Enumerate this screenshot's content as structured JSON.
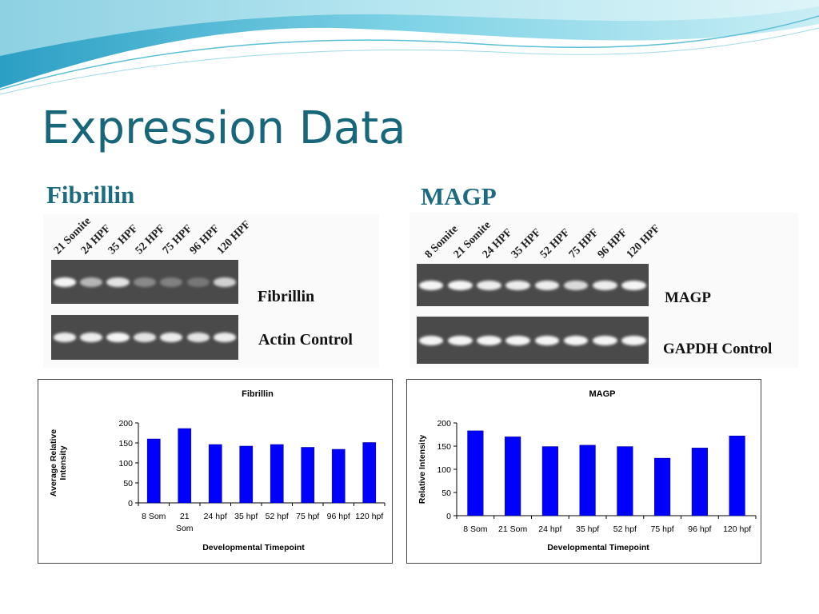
{
  "slide": {
    "title": "Expression Data"
  },
  "fibrillin_section": {
    "heading": "Fibrillin",
    "lanes": [
      "21 Somite",
      "24 HPF",
      "35 HPF",
      "52 HPF",
      "75 HPF",
      "96 HPF",
      "120 HPF"
    ],
    "gel_captions": [
      "Fibrillin",
      "Actin Control"
    ]
  },
  "magp_section": {
    "heading": "MAGP",
    "lanes": [
      "8 Somite",
      "21 Somite",
      "24 HPF",
      "35 HPF",
      "52 HPF",
      "75 HPF",
      "96 HPF",
      "120 HPF"
    ],
    "gel_captions": [
      "MAGP",
      "GAPDH Control"
    ]
  },
  "colors": {
    "title": "#17667a",
    "heading": "#1d6b80",
    "bar": "#0000ff",
    "gel": "#4a4a4a"
  },
  "chart_data": [
    {
      "type": "bar",
      "title": "Fibrillin",
      "categories": [
        "8 Som",
        "21 Som",
        "24 hpf",
        "35 hpf",
        "52 hpf",
        "75 hpf",
        "96 hpf",
        "120 hpf"
      ],
      "values": [
        160,
        186,
        146,
        142,
        146,
        139,
        134,
        151
      ],
      "xlabel": "Developmental Timepoint",
      "ylabel": "Average Relative Intensity",
      "ylim": [
        0,
        200
      ],
      "yticks": [
        0,
        50,
        100,
        150,
        200
      ],
      "grid": false,
      "legend": "none"
    },
    {
      "type": "bar",
      "title": "MAGP",
      "categories": [
        "8 Som",
        "21 Som",
        "24 hpf",
        "35 hpf",
        "52 hpf",
        "75 hpf",
        "96 hpf",
        "120 hpf"
      ],
      "values": [
        183,
        170,
        149,
        152,
        149,
        124,
        146,
        172
      ],
      "xlabel": "Developmental Timepoint",
      "ylabel": "Relative Intensity",
      "ylim": [
        0,
        200
      ],
      "yticks": [
        0,
        50,
        100,
        150,
        200
      ],
      "grid": false,
      "legend": "none"
    }
  ]
}
